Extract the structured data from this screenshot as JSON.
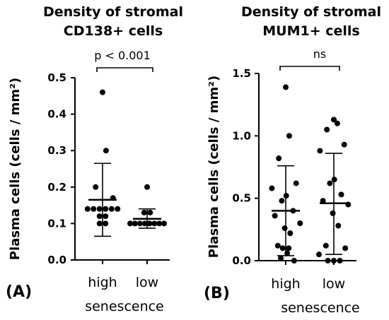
{
  "chart_data": [
    {
      "type": "scatter",
      "panel_label": "(A)",
      "title_lines": [
        "Density of stromal",
        "CD138+ cells"
      ],
      "ylabel": "Plasma cells (cells / mm²)",
      "xlabel": "senescence",
      "ylim": [
        0,
        0.5
      ],
      "yticks": [
        0.0,
        0.1,
        0.2,
        0.3,
        0.4,
        0.5
      ],
      "ytick_labels": [
        "0.0",
        "0.1",
        "0.2",
        "0.3",
        "0.4",
        "0.5"
      ],
      "categories": [
        "high",
        "low"
      ],
      "groups": [
        {
          "category": "high",
          "mean": 0.165,
          "sd_upper": 0.265,
          "sd_lower": 0.065,
          "points": [
            0.46,
            0.3,
            0.2,
            0.17,
            0.14,
            0.14,
            0.14,
            0.14,
            0.14,
            0.14,
            0.12,
            0.12,
            0.1,
            0.1
          ]
        },
        {
          "category": "low",
          "mean": 0.113,
          "sd_upper": 0.14,
          "sd_lower": 0.087,
          "points": [
            0.2,
            0.13,
            0.13,
            0.1,
            0.1,
            0.1,
            0.1,
            0.1,
            0.1,
            0.1,
            0.1
          ]
        }
      ],
      "significance": "p < 0.001"
    },
    {
      "type": "scatter",
      "panel_label": "(B)",
      "title_lines": [
        "Density of stromal",
        "MUM1+ cells"
      ],
      "ylabel": "Plasma cells (cells / mm²)",
      "xlabel": "senescence",
      "ylim": [
        0,
        1.5
      ],
      "yticks": [
        0.0,
        0.5,
        1.0,
        1.5
      ],
      "ytick_labels": [
        "0.0",
        "0.5",
        "1.0",
        "1.5"
      ],
      "categories": [
        "high",
        "low"
      ],
      "groups": [
        {
          "category": "high",
          "mean": 0.4,
          "sd_upper": 0.76,
          "sd_lower": 0.04,
          "points": [
            1.39,
            1.0,
            0.82,
            0.62,
            0.58,
            0.52,
            0.48,
            0.4,
            0.36,
            0.3,
            0.26,
            0.22,
            0.12,
            0.1,
            0.1,
            0.06,
            0.02,
            0.0
          ]
        },
        {
          "category": "low",
          "mean": 0.46,
          "sd_upper": 0.86,
          "sd_lower": 0.05,
          "points": [
            1.13,
            1.1,
            1.05,
            0.93,
            0.88,
            0.65,
            0.62,
            0.53,
            0.48,
            0.45,
            0.38,
            0.28,
            0.12,
            0.1,
            0.05,
            0.0,
            0.0,
            0.0
          ]
        }
      ],
      "significance": "ns"
    }
  ]
}
